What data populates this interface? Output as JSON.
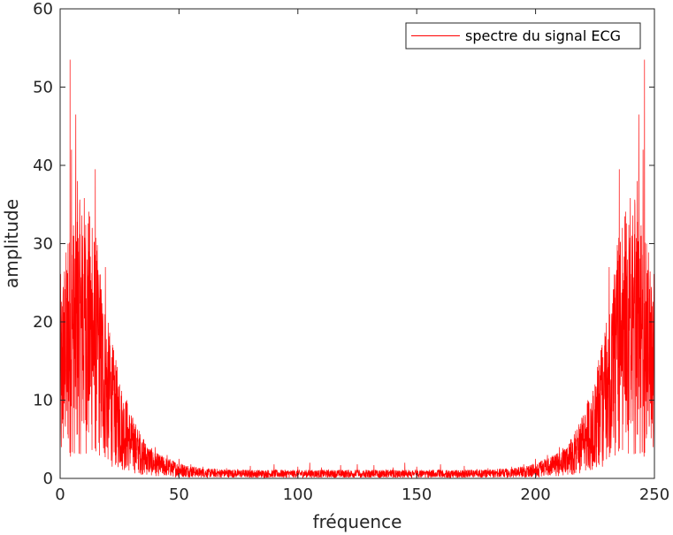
{
  "chart_data": {
    "type": "line",
    "title": "",
    "xlabel": "fréquence",
    "ylabel": "amplitude",
    "xlim": [
      0,
      250
    ],
    "ylim": [
      0,
      60
    ],
    "xticks": [
      0,
      50,
      100,
      150,
      200,
      250
    ],
    "yticks": [
      0,
      10,
      20,
      30,
      40,
      50,
      60
    ],
    "grid": false,
    "legend_position": "top-right",
    "symmetric": true,
    "series": [
      {
        "name": "spectre du signal ECG",
        "color": "#ff0000",
        "peaks": [
          {
            "x": 0.5,
            "y": 4
          },
          {
            "x": 2,
            "y": 12
          },
          {
            "x": 3.3,
            "y": 30
          },
          {
            "x": 4.2,
            "y": 53.5
          },
          {
            "x": 4.8,
            "y": 42
          },
          {
            "x": 5.5,
            "y": 31
          },
          {
            "x": 6.6,
            "y": 46.5
          },
          {
            "x": 7.3,
            "y": 38
          },
          {
            "x": 8.2,
            "y": 35
          },
          {
            "x": 9.5,
            "y": 31
          },
          {
            "x": 10.5,
            "y": 28
          },
          {
            "x": 12,
            "y": 29
          },
          {
            "x": 13.5,
            "y": 32
          },
          {
            "x": 14.8,
            "y": 39.5
          },
          {
            "x": 16,
            "y": 25
          },
          {
            "x": 17.5,
            "y": 21
          },
          {
            "x": 19,
            "y": 27
          },
          {
            "x": 21,
            "y": 17
          },
          {
            "x": 23,
            "y": 14
          },
          {
            "x": 25,
            "y": 12
          },
          {
            "x": 28,
            "y": 10
          },
          {
            "x": 31,
            "y": 7
          },
          {
            "x": 35,
            "y": 5
          },
          {
            "x": 40,
            "y": 4
          },
          {
            "x": 45,
            "y": 3
          },
          {
            "x": 50,
            "y": 2.5
          },
          {
            "x": 55,
            "y": 1.8
          },
          {
            "x": 60,
            "y": 1.5
          },
          {
            "x": 70,
            "y": 1.3
          },
          {
            "x": 80,
            "y": 1.6
          },
          {
            "x": 90,
            "y": 1.8
          },
          {
            "x": 100,
            "y": 1.5
          },
          {
            "x": 105,
            "y": 2
          },
          {
            "x": 110,
            "y": 1.4
          },
          {
            "x": 118,
            "y": 1.7
          },
          {
            "x": 125,
            "y": 1.8
          }
        ],
        "noise_floor": [
          {
            "x": 0,
            "y": 14
          },
          {
            "x": 5,
            "y": 18
          },
          {
            "x": 10,
            "y": 20
          },
          {
            "x": 15,
            "y": 17
          },
          {
            "x": 20,
            "y": 11
          },
          {
            "x": 25,
            "y": 7
          },
          {
            "x": 30,
            "y": 4.5
          },
          {
            "x": 35,
            "y": 2.8
          },
          {
            "x": 40,
            "y": 1.8
          },
          {
            "x": 50,
            "y": 1.1
          },
          {
            "x": 60,
            "y": 0.7
          },
          {
            "x": 80,
            "y": 0.6
          },
          {
            "x": 100,
            "y": 0.6
          },
          {
            "x": 125,
            "y": 0.6
          }
        ]
      }
    ]
  }
}
